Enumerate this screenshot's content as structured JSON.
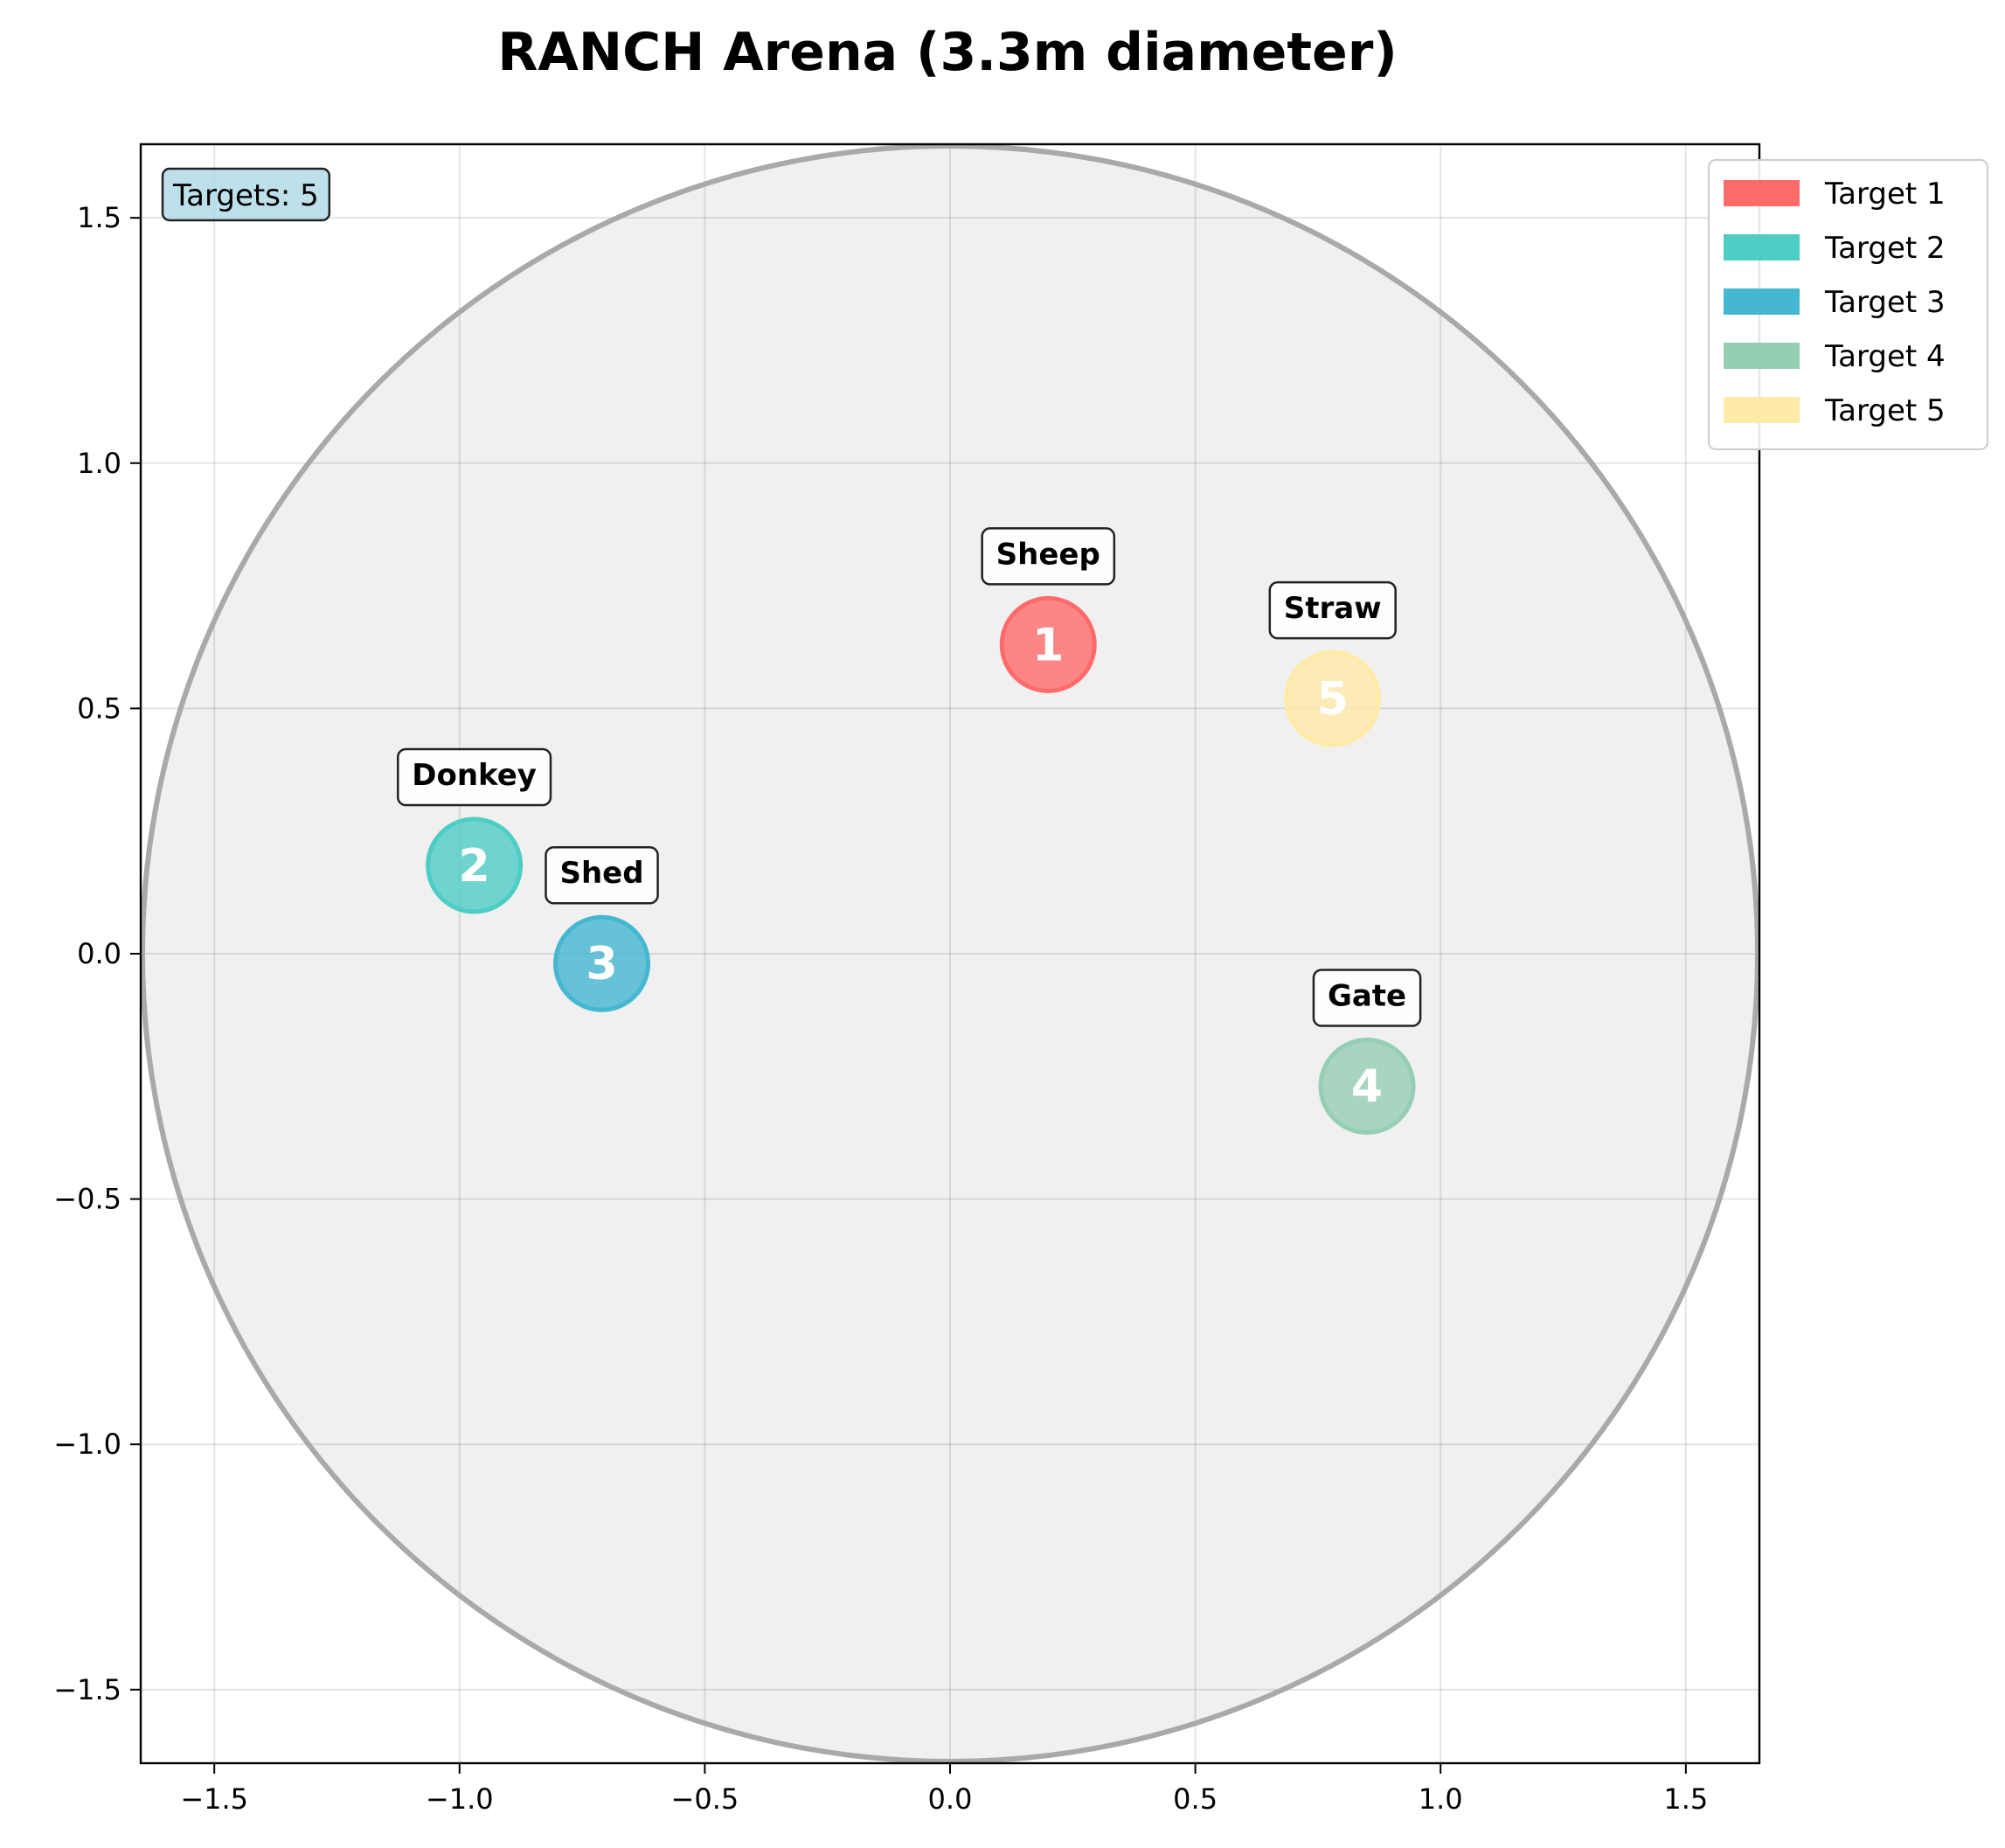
{
  "chart_data": {
    "type": "scatter",
    "title": "RANCH Arena (3.3m diameter)",
    "xlabel": "",
    "ylabel": "",
    "xlim": [
      -1.65,
      1.65
    ],
    "ylim": [
      -1.65,
      1.65
    ],
    "arena_radius": 1.65,
    "grid": true,
    "legend_position": "upper-right-outside",
    "x_ticks": [
      -1.5,
      -1.0,
      -0.5,
      0.0,
      0.5,
      1.0,
      1.5
    ],
    "y_ticks": [
      -1.5,
      -1.0,
      -0.5,
      0.0,
      0.5,
      1.0,
      1.5
    ],
    "x_tick_labels": [
      "−1.5",
      "−1.0",
      "−0.5",
      "0.0",
      "0.5",
      "1.0",
      "1.5"
    ],
    "y_tick_labels": [
      "−1.5",
      "−1.0",
      "−0.5",
      "0.0",
      "0.5",
      "1.0",
      "1.5"
    ],
    "target_count_text": "Targets: 5",
    "targets": [
      {
        "id": "1",
        "name": "Sheep",
        "x": 0.2,
        "y": 0.63,
        "color": "#ff6b6b",
        "legend": "Target 1"
      },
      {
        "id": "2",
        "name": "Donkey",
        "x": -0.97,
        "y": 0.18,
        "color": "#4ecdc4",
        "legend": "Target 2"
      },
      {
        "id": "3",
        "name": "Shed",
        "x": -0.71,
        "y": -0.02,
        "color": "#45b7d1",
        "legend": "Target 3"
      },
      {
        "id": "4",
        "name": "Gate",
        "x": 0.85,
        "y": -0.27,
        "color": "#96ceb4",
        "legend": "Target 4"
      },
      {
        "id": "5",
        "name": "Straw",
        "x": 0.78,
        "y": 0.52,
        "color": "#ffeaa7",
        "legend": "Target 5"
      }
    ]
  }
}
